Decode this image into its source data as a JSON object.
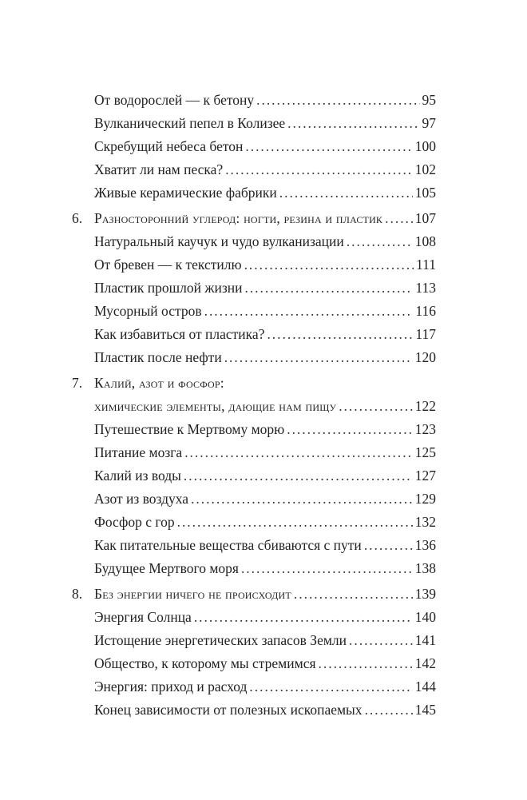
{
  "groups": [
    {
      "chapter": null,
      "entries": [
        {
          "title": "От водорослей — к бетону",
          "page": "95"
        },
        {
          "title": "Вулканический пепел в Колизее",
          "page": "97"
        },
        {
          "title": "Скребущий небеса бетон",
          "page": "100"
        },
        {
          "title": "Хватит ли нам песка?",
          "page": "102"
        },
        {
          "title": "Живые керамические фабрики",
          "page": "105"
        }
      ]
    },
    {
      "chapter": {
        "number": "6.",
        "lines": [
          "Разносторонний углерод: ногти, резина и пластик"
        ],
        "page": "107"
      },
      "entries": [
        {
          "title": "Натуральный каучук и чудо вулканизации",
          "page": "108"
        },
        {
          "title": "От бревен — к текстилю",
          "page": "111"
        },
        {
          "title": "Пластик прошлой жизни",
          "page": "113"
        },
        {
          "title": "Мусорный остров",
          "page": "116"
        },
        {
          "title": "Как избавиться от пластика?",
          "page": "117"
        },
        {
          "title": "Пластик после нефти",
          "page": "120"
        }
      ]
    },
    {
      "chapter": {
        "number": "7.",
        "lines": [
          "Калий, азот и фосфор:",
          "химические элементы, дающие нам пищу"
        ],
        "page": "122"
      },
      "entries": [
        {
          "title": "Путешествие к Мертвому морю",
          "page": "123"
        },
        {
          "title": "Питание мозга",
          "page": "125"
        },
        {
          "title": "Калий из воды",
          "page": "127"
        },
        {
          "title": "Азот из воздуха",
          "page": "129"
        },
        {
          "title": "Фосфор с гор",
          "page": "132"
        },
        {
          "title": "Как питательные вещества сбиваются с пути",
          "page": "136"
        },
        {
          "title": "Будущее Мертвого моря",
          "page": "138"
        }
      ]
    },
    {
      "chapter": {
        "number": "8.",
        "lines": [
          "Без энергии ничего не происходит"
        ],
        "page": "139"
      },
      "entries": [
        {
          "title": "Энергия Солнца",
          "page": "140"
        },
        {
          "title": "Истощение энергетических запасов Земли",
          "page": "141"
        },
        {
          "title": "Общество, к которому мы стремимся",
          "page": "142"
        },
        {
          "title": "Энергия: приход и расход",
          "page": "144"
        },
        {
          "title": "Конец зависимости от полезных ископаемых",
          "page": "145"
        }
      ]
    }
  ]
}
